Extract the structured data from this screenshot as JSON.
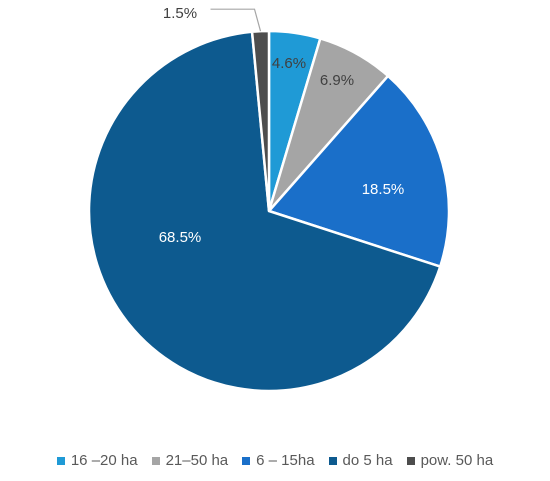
{
  "chart_data": {
    "type": "pie",
    "slices": [
      {
        "label": "16 –20 ha",
        "value": 4.6,
        "value_label": "4.6%",
        "color": "#1f9ad6"
      },
      {
        "label": "21–50 ha",
        "value": 6.9,
        "value_label": "6.9%",
        "color": "#a5a5a5"
      },
      {
        "label": "6 – 15ha",
        "value": 18.5,
        "value_label": "18.5%",
        "color": "#1a6fc9"
      },
      {
        "label": "do 5 ha",
        "value": 68.5,
        "value_label": "68.5%",
        "color": "#0d5a8f"
      },
      {
        "label": "pow. 50 ha",
        "value": 1.5,
        "value_label": "1.5%",
        "color": "#4d4d4d"
      }
    ],
    "legend_position": "bottom"
  }
}
